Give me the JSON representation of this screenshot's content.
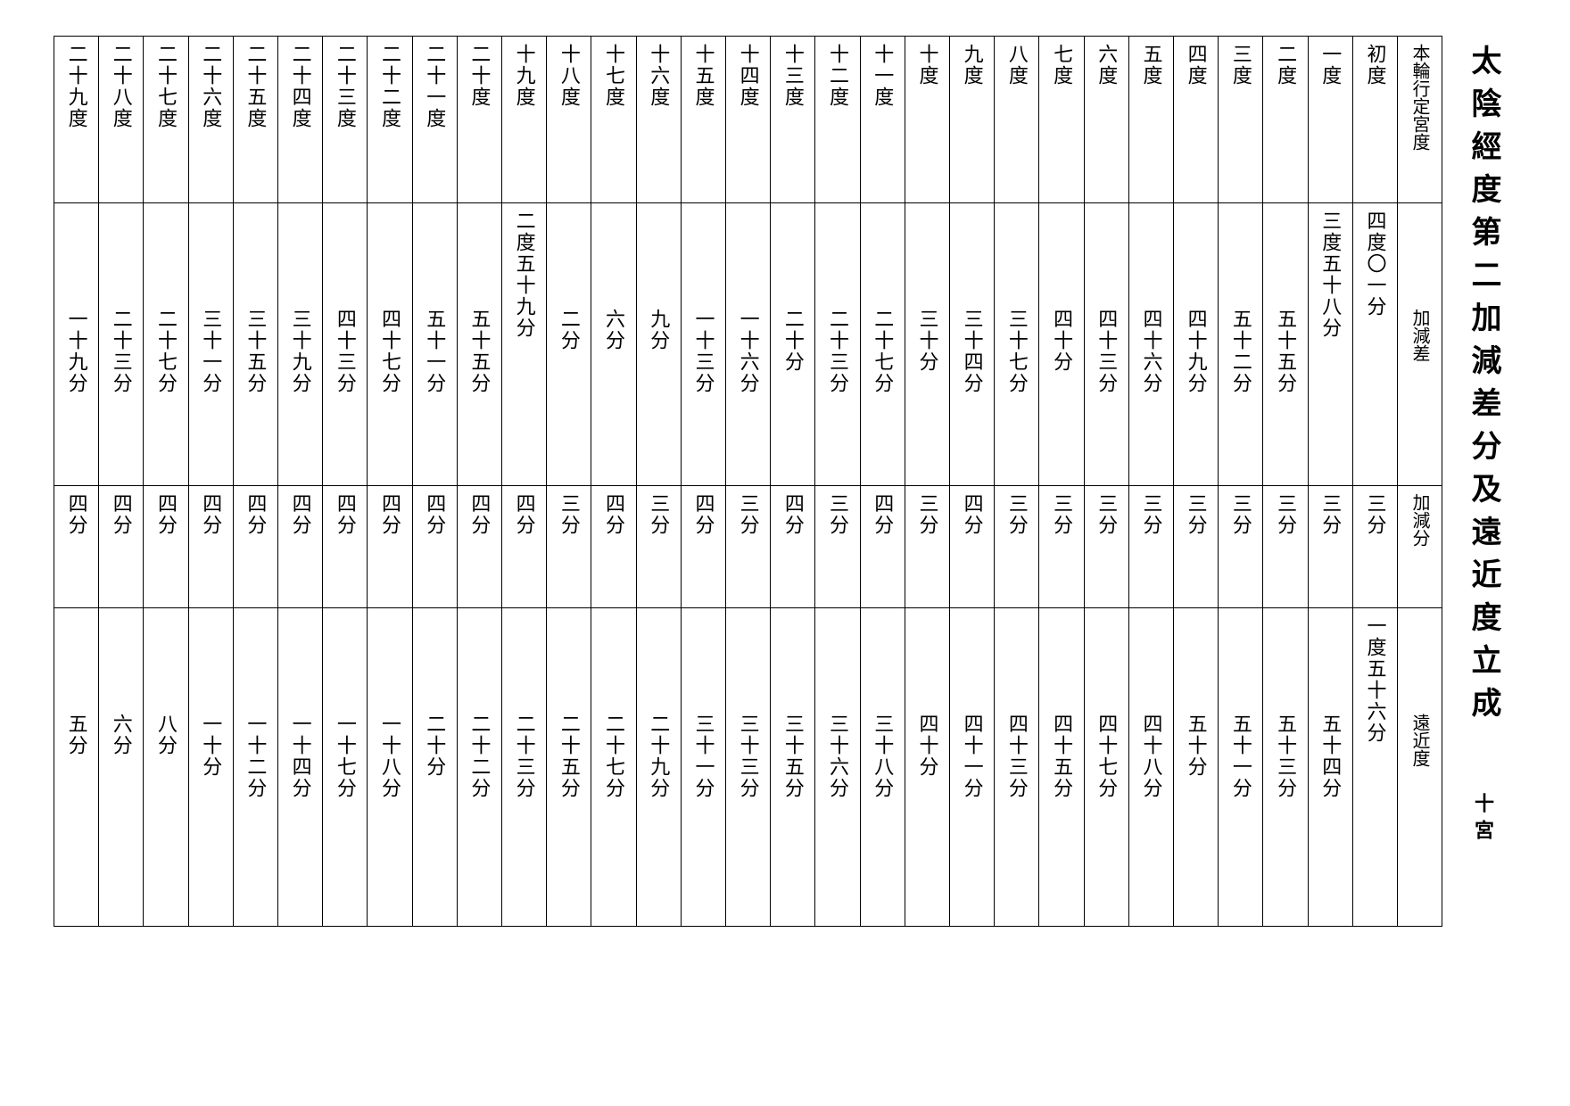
{
  "title": "太陰經度第二加減差分及遠近度立成",
  "sublabel": "十宮",
  "headers": {
    "r1": "本輪行定宮度",
    "r2": "加減差",
    "r3": "加減分",
    "r4": "遠近度"
  },
  "cols": [
    {
      "deg": "初度",
      "diff_top": "四度",
      "diff_bot": "〇一分",
      "fen": "三分",
      "dist_top": "一度",
      "dist_bot": "五十六分"
    },
    {
      "deg": "一度",
      "diff_top": "三度",
      "diff_bot": "五十八分",
      "fen": "三分",
      "dist_top": "",
      "dist_bot": "五十四分"
    },
    {
      "deg": "二度",
      "diff_top": "",
      "diff_bot": "五十五分",
      "fen": "三分",
      "dist_top": "",
      "dist_bot": "五十三分"
    },
    {
      "deg": "三度",
      "diff_top": "",
      "diff_bot": "五十二分",
      "fen": "三分",
      "dist_top": "",
      "dist_bot": "五十一分"
    },
    {
      "deg": "四度",
      "diff_top": "",
      "diff_bot": "四十九分",
      "fen": "三分",
      "dist_top": "",
      "dist_bot": "五十分"
    },
    {
      "deg": "五度",
      "diff_top": "",
      "diff_bot": "四十六分",
      "fen": "三分",
      "dist_top": "",
      "dist_bot": "四十八分"
    },
    {
      "deg": "六度",
      "diff_top": "",
      "diff_bot": "四十三分",
      "fen": "三分",
      "dist_top": "",
      "dist_bot": "四十七分"
    },
    {
      "deg": "七度",
      "diff_top": "",
      "diff_bot": "四十分",
      "fen": "三分",
      "dist_top": "",
      "dist_bot": "四十五分"
    },
    {
      "deg": "八度",
      "diff_top": "",
      "diff_bot": "三十七分",
      "fen": "三分",
      "dist_top": "",
      "dist_bot": "四十三分"
    },
    {
      "deg": "九度",
      "diff_top": "",
      "diff_bot": "三十四分",
      "fen": "四分",
      "dist_top": "",
      "dist_bot": "四十一分"
    },
    {
      "deg": "十度",
      "diff_top": "",
      "diff_bot": "三十分",
      "fen": "三分",
      "dist_top": "",
      "dist_bot": "四十分"
    },
    {
      "deg": "十一度",
      "diff_top": "",
      "diff_bot": "二十七分",
      "fen": "四分",
      "dist_top": "",
      "dist_bot": "三十八分"
    },
    {
      "deg": "十二度",
      "diff_top": "",
      "diff_bot": "二十三分",
      "fen": "三分",
      "dist_top": "",
      "dist_bot": "三十六分"
    },
    {
      "deg": "十三度",
      "diff_top": "",
      "diff_bot": "二十分",
      "fen": "四分",
      "dist_top": "",
      "dist_bot": "三十五分"
    },
    {
      "deg": "十四度",
      "diff_top": "",
      "diff_bot": "一十六分",
      "fen": "三分",
      "dist_top": "",
      "dist_bot": "三十三分"
    },
    {
      "deg": "十五度",
      "diff_top": "",
      "diff_bot": "一十三分",
      "fen": "四分",
      "dist_top": "",
      "dist_bot": "三十一分"
    },
    {
      "deg": "十六度",
      "diff_top": "",
      "diff_bot": "九分",
      "fen": "三分",
      "dist_top": "",
      "dist_bot": "二十九分"
    },
    {
      "deg": "十七度",
      "diff_top": "",
      "diff_bot": "六分",
      "fen": "四分",
      "dist_top": "",
      "dist_bot": "二十七分"
    },
    {
      "deg": "十八度",
      "diff_top": "",
      "diff_bot": "二分",
      "fen": "三分",
      "dist_top": "",
      "dist_bot": "二十五分"
    },
    {
      "deg": "十九度",
      "diff_top": "二度",
      "diff_bot": "五十九分",
      "fen": "四分",
      "dist_top": "",
      "dist_bot": "二十三分"
    },
    {
      "deg": "二十度",
      "diff_top": "",
      "diff_bot": "五十五分",
      "fen": "四分",
      "dist_top": "",
      "dist_bot": "二十二分"
    },
    {
      "deg": "二十一度",
      "diff_top": "",
      "diff_bot": "五十一分",
      "fen": "四分",
      "dist_top": "",
      "dist_bot": "二十分"
    },
    {
      "deg": "二十二度",
      "diff_top": "",
      "diff_bot": "四十七分",
      "fen": "四分",
      "dist_top": "",
      "dist_bot": "一十八分"
    },
    {
      "deg": "二十三度",
      "diff_top": "",
      "diff_bot": "四十三分",
      "fen": "四分",
      "dist_top": "",
      "dist_bot": "一十七分"
    },
    {
      "deg": "二十四度",
      "diff_top": "",
      "diff_bot": "三十九分",
      "fen": "四分",
      "dist_top": "",
      "dist_bot": "一十四分"
    },
    {
      "deg": "二十五度",
      "diff_top": "",
      "diff_bot": "三十五分",
      "fen": "四分",
      "dist_top": "",
      "dist_bot": "一十二分"
    },
    {
      "deg": "二十六度",
      "diff_top": "",
      "diff_bot": "三十一分",
      "fen": "四分",
      "dist_top": "",
      "dist_bot": "一十分"
    },
    {
      "deg": "二十七度",
      "diff_top": "",
      "diff_bot": "二十七分",
      "fen": "四分",
      "dist_top": "",
      "dist_bot": "八分"
    },
    {
      "deg": "二十八度",
      "diff_top": "",
      "diff_bot": "二十三分",
      "fen": "四分",
      "dist_top": "",
      "dist_bot": "六分"
    },
    {
      "deg": "二十九度",
      "diff_top": "",
      "diff_bot": "一十九分",
      "fen": "四分",
      "dist_top": "",
      "dist_bot": "五分"
    }
  ]
}
